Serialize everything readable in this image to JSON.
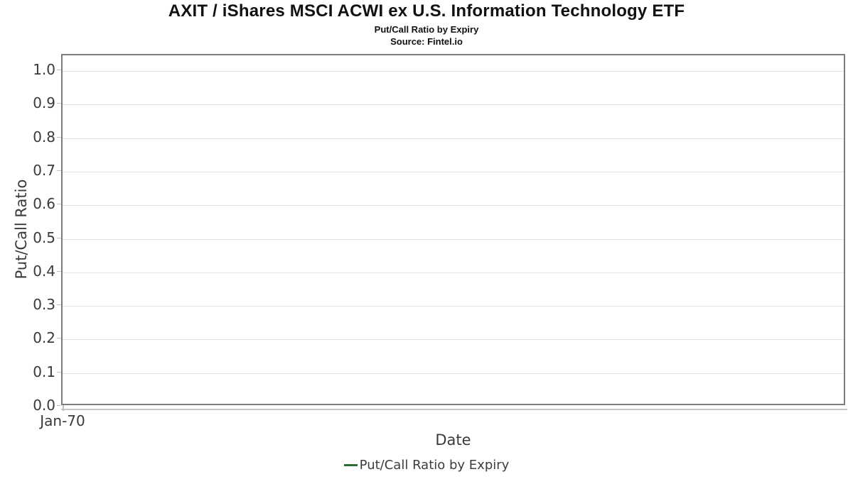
{
  "chart_data": {
    "type": "line",
    "title": "AXIT / iShares MSCI ACWI ex U.S. Information Technology ETF",
    "subtitle": "Put/Call Ratio by Expiry",
    "source": "Source: Fintel.io",
    "xlabel": "Date",
    "ylabel": "Put/Call Ratio",
    "ylim": [
      0.0,
      1.05
    ],
    "yticks": [
      0.0,
      0.1,
      0.2,
      0.3,
      0.4,
      0.5,
      0.6,
      0.7,
      0.8,
      0.9,
      1.0
    ],
    "ytick_labels": [
      "0.0",
      "0.1",
      "0.2",
      "0.3",
      "0.4",
      "0.5",
      "0.6",
      "0.7",
      "0.8",
      "0.9",
      "1.0"
    ],
    "xticks": [
      "Jan-70"
    ],
    "grid": "horizontal-only",
    "plot_background": "#ffffff",
    "series": [
      {
        "name": "Put/Call Ratio by Expiry",
        "color": "#2d6b34",
        "x": [],
        "values": []
      }
    ],
    "legend_position": "bottom-center"
  },
  "legend": {
    "items": [
      {
        "label": "Put/Call Ratio by Expiry",
        "color": "#2d6b34"
      }
    ]
  }
}
